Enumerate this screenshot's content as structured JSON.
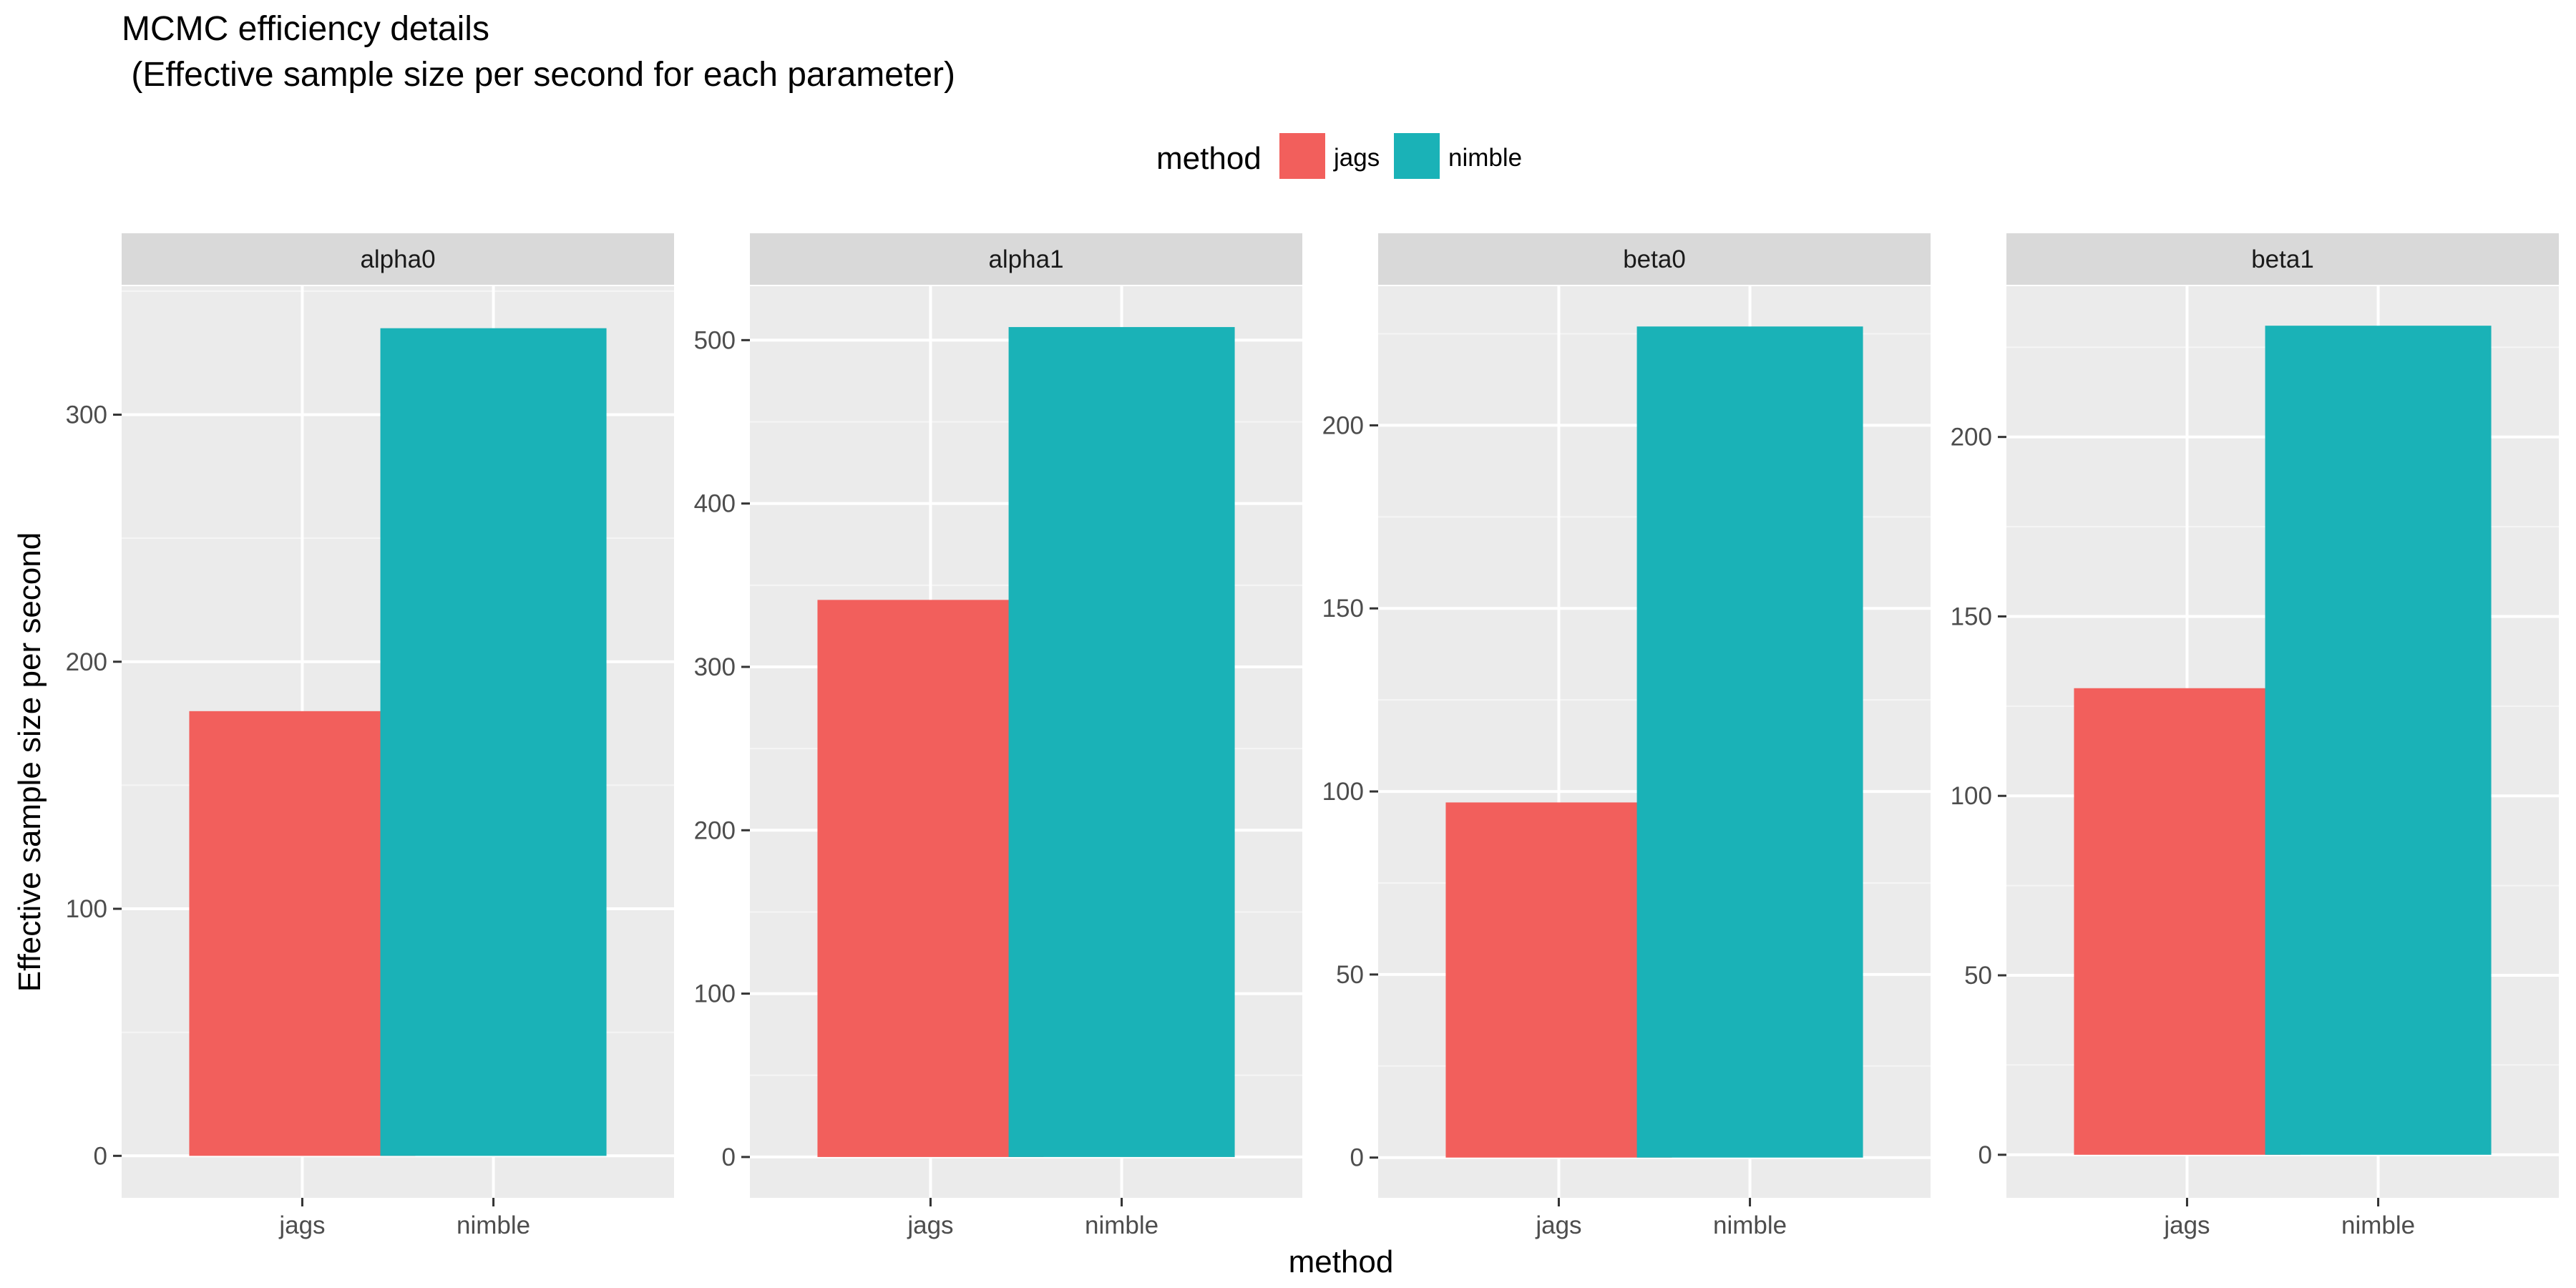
{
  "chart_data": {
    "type": "bar",
    "title": "MCMC efficiency details",
    "subtitle": " (Effective sample size per second for each parameter)",
    "xlabel": "method",
    "ylabel": "Effective sample size per second",
    "legend": {
      "title": "method",
      "placement": "top",
      "entries": [
        {
          "name": "jags",
          "color": "#F25F5C"
        },
        {
          "name": "nimble",
          "color": "#1AB2B7"
        }
      ]
    },
    "categories": [
      "jags",
      "nimble"
    ],
    "grid": true,
    "facets": [
      {
        "name": "alpha0",
        "values": [
          180,
          335
        ],
        "ylim": [
          -17,
          352
        ],
        "ticks": [
          0,
          100,
          200,
          300
        ]
      },
      {
        "name": "alpha1",
        "values": [
          341,
          508
        ],
        "ylim": [
          -25,
          533
        ],
        "ticks": [
          0,
          100,
          200,
          300,
          400,
          500
        ]
      },
      {
        "name": "beta0",
        "values": [
          97,
          227
        ],
        "ylim": [
          -11,
          238
        ],
        "ticks": [
          0,
          50,
          100,
          150,
          200
        ]
      },
      {
        "name": "beta1",
        "values": [
          130,
          231
        ],
        "ylim": [
          -12,
          242
        ],
        "ticks": [
          0,
          50,
          100,
          150,
          200
        ]
      }
    ]
  }
}
